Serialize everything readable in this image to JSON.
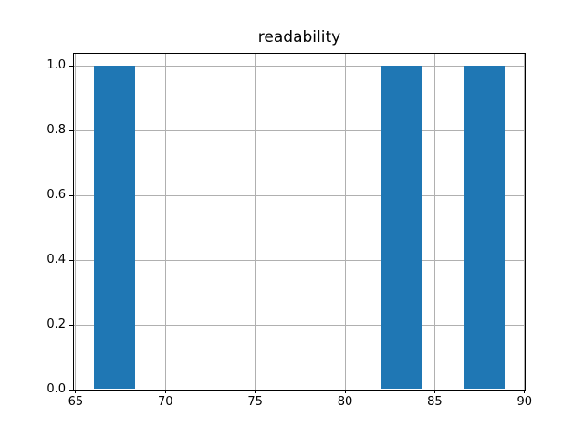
{
  "chart_data": {
    "type": "bar",
    "subtype": "histogram",
    "title": "readability",
    "xlabel": "",
    "ylabel": "",
    "bars": [
      {
        "x_start": 66.0,
        "x_end": 68.29,
        "height": 1.0
      },
      {
        "x_start": 82.03,
        "x_end": 84.32,
        "height": 1.0
      },
      {
        "x_start": 86.61,
        "x_end": 88.9,
        "height": 1.0
      }
    ],
    "x_ticks": [
      65,
      70,
      75,
      80,
      85,
      90
    ],
    "x_tick_labels": [
      "65",
      "70",
      "75",
      "80",
      "85",
      "90"
    ],
    "y_ticks": [
      0.0,
      0.2,
      0.4,
      0.6,
      0.8,
      1.0
    ],
    "y_tick_labels": [
      "0.0",
      "0.2",
      "0.4",
      "0.6",
      "0.8",
      "1.0"
    ],
    "xlim": [
      64.85,
      90.06
    ],
    "ylim": [
      0,
      1.042
    ],
    "grid": true,
    "legend_position": "none",
    "colors": {
      "bar": "#1f77b4",
      "grid": "#b0b0b0",
      "axis": "#000000",
      "background": "#ffffff"
    }
  }
}
